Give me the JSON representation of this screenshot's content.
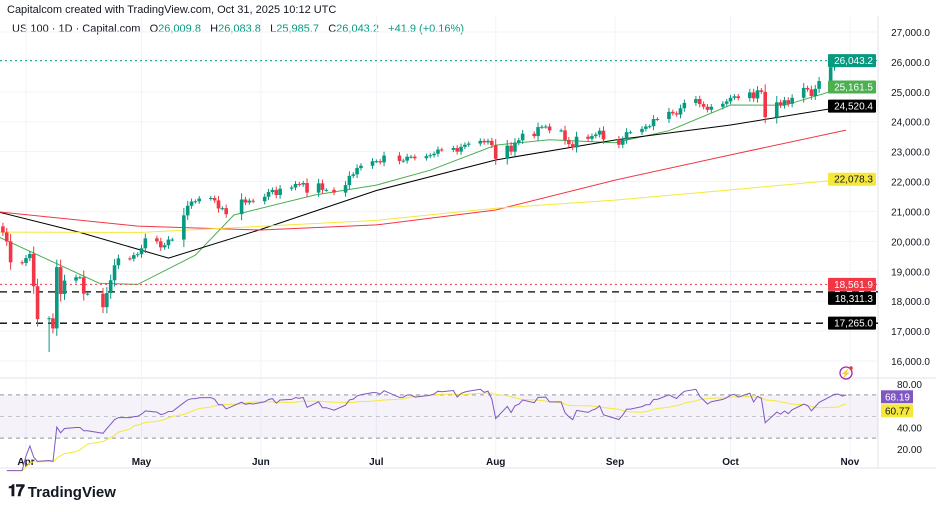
{
  "header": "Capitalcom created with TradingView.com, Oct 31, 2025 10:12 UTC",
  "legend": {
    "symbol": "US 100 · 1D · Capital.com",
    "o_label": "O",
    "o": "26,009.8",
    "h_label": "H",
    "h": "26,083.8",
    "l_label": "L",
    "l": "25,985.7",
    "c_label": "C",
    "c": "26,043.2",
    "change": "+41.9 (+0.16%)"
  },
  "brand": "TradingView",
  "colors": {
    "up": "#089981",
    "down": "#f23645",
    "ma20": "#4caf50",
    "ma50": "#000000",
    "ma100": "#f23645",
    "ma200": "#f5e83b",
    "rsi": "#7e57c2",
    "rsima": "#f5e83b"
  },
  "chart_data": {
    "type": "candlestick",
    "y_ticks": [
      27000,
      26000,
      25000,
      24000,
      23000,
      22000,
      21000,
      20000,
      19000,
      18000,
      17000,
      16000
    ],
    "y_tick_labels": [
      "27,000.0",
      "26,000.0",
      "25,000.0",
      "24,000.0",
      "23,000.0",
      "22,000.0",
      "21,000.0",
      "20,000.0",
      "19,000.0",
      "18,000.0",
      "17,000.0",
      "16,000.0"
    ],
    "x_labels": [
      {
        "date": "2025-04-01",
        "label": "Apr"
      },
      {
        "date": "2025-05-01",
        "label": "May"
      },
      {
        "date": "2025-06-01",
        "label": "Jun"
      },
      {
        "date": "2025-07-01",
        "label": "Jul"
      },
      {
        "date": "2025-08-01",
        "label": "Aug"
      },
      {
        "date": "2025-09-01",
        "label": "Sep"
      },
      {
        "date": "2025-10-01",
        "label": "Oct"
      },
      {
        "date": "2025-11-01",
        "label": "Nov"
      }
    ],
    "closes": [
      [
        "03-26",
        20300
      ],
      [
        "03-27",
        20000
      ],
      [
        "03-28",
        19300
      ],
      [
        "03-31",
        19280
      ],
      [
        "04-01",
        19440
      ],
      [
        "04-02",
        19580
      ],
      [
        "04-03",
        18500
      ],
      [
        "04-04",
        17400
      ],
      [
        "04-07",
        17430
      ],
      [
        "04-08",
        17090
      ],
      [
        "04-09",
        19140
      ],
      [
        "04-10",
        18240
      ],
      [
        "04-11",
        18690
      ],
      [
        "04-14",
        18800
      ],
      [
        "04-15",
        18800
      ],
      [
        "04-16",
        18250
      ],
      [
        "04-17",
        18250
      ],
      [
        "04-21",
        17800
      ],
      [
        "04-22",
        18270
      ],
      [
        "04-23",
        18700
      ],
      [
        "04-24",
        19200
      ],
      [
        "04-25",
        19430
      ],
      [
        "04-28",
        19420
      ],
      [
        "04-29",
        19540
      ],
      [
        "04-30",
        19570
      ],
      [
        "05-01",
        19770
      ],
      [
        "05-02",
        20100
      ],
      [
        "05-05",
        20000
      ],
      [
        "05-06",
        19800
      ],
      [
        "05-07",
        19870
      ],
      [
        "05-08",
        20060
      ],
      [
        "05-09",
        20060
      ],
      [
        "05-12",
        20870
      ],
      [
        "05-13",
        21190
      ],
      [
        "05-14",
        21330
      ],
      [
        "05-15",
        21340
      ],
      [
        "05-16",
        21430
      ],
      [
        "05-19",
        21450
      ],
      [
        "05-20",
        21370
      ],
      [
        "05-21",
        21100
      ],
      [
        "05-22",
        21110
      ],
      [
        "05-23",
        20910
      ],
      [
        "05-27",
        21400
      ],
      [
        "05-28",
        21300
      ],
      [
        "05-29",
        21360
      ],
      [
        "05-30",
        21340
      ],
      [
        "06-02",
        21490
      ],
      [
        "06-03",
        21650
      ],
      [
        "06-04",
        21720
      ],
      [
        "06-05",
        21550
      ],
      [
        "06-06",
        21760
      ],
      [
        "06-09",
        21800
      ],
      [
        "06-10",
        21920
      ],
      [
        "06-11",
        21900
      ],
      [
        "06-12",
        21950
      ],
      [
        "06-13",
        21630
      ],
      [
        "06-16",
        21940
      ],
      [
        "06-17",
        21720
      ],
      [
        "06-18",
        21720
      ],
      [
        "06-20",
        21630
      ],
      [
        "06-23",
        21880
      ],
      [
        "06-24",
        22190
      ],
      [
        "06-25",
        22240
      ],
      [
        "06-26",
        22450
      ],
      [
        "06-27",
        22530
      ],
      [
        "06-30",
        22680
      ],
      [
        "07-01",
        22680
      ],
      [
        "07-02",
        22640
      ],
      [
        "07-03",
        22870
      ],
      [
        "07-07",
        22690
      ],
      [
        "07-08",
        22700
      ],
      [
        "07-09",
        22830
      ],
      [
        "07-10",
        22830
      ],
      [
        "07-11",
        22780
      ],
      [
        "07-14",
        22850
      ],
      [
        "07-15",
        22880
      ],
      [
        "07-16",
        22930
      ],
      [
        "07-17",
        23070
      ],
      [
        "07-18",
        23060
      ],
      [
        "07-21",
        23120
      ],
      [
        "07-22",
        23000
      ],
      [
        "07-23",
        23160
      ],
      [
        "07-24",
        23230
      ],
      [
        "07-25",
        23270
      ],
      [
        "07-28",
        23360
      ],
      [
        "07-29",
        23310
      ],
      [
        "07-30",
        23360
      ],
      [
        "07-31",
        23220
      ],
      [
        "08-01",
        22760
      ],
      [
        "08-04",
        23200
      ],
      [
        "08-05",
        23000
      ],
      [
        "08-06",
        23300
      ],
      [
        "08-07",
        23380
      ],
      [
        "08-08",
        23600
      ],
      [
        "08-11",
        23520
      ],
      [
        "08-12",
        23820
      ],
      [
        "08-13",
        23830
      ],
      [
        "08-14",
        23840
      ],
      [
        "08-15",
        23710
      ],
      [
        "08-18",
        23710
      ],
      [
        "08-19",
        23390
      ],
      [
        "08-20",
        23250
      ],
      [
        "08-21",
        23140
      ],
      [
        "08-22",
        23500
      ],
      [
        "08-25",
        23430
      ],
      [
        "08-26",
        23520
      ],
      [
        "08-27",
        23570
      ],
      [
        "08-28",
        23700
      ],
      [
        "08-29",
        23410
      ],
      [
        "09-02",
        23230
      ],
      [
        "09-03",
        23400
      ],
      [
        "09-04",
        23650
      ],
      [
        "09-05",
        23650
      ],
      [
        "09-08",
        23760
      ],
      [
        "09-09",
        23840
      ],
      [
        "09-10",
        23850
      ],
      [
        "09-11",
        24090
      ],
      [
        "09-12",
        24090
      ],
      [
        "09-15",
        24330
      ],
      [
        "09-16",
        24280
      ],
      [
        "09-17",
        24240
      ],
      [
        "09-18",
        24450
      ],
      [
        "09-19",
        24630
      ],
      [
        "09-22",
        24760
      ],
      [
        "09-23",
        24590
      ],
      [
        "09-24",
        24500
      ],
      [
        "09-25",
        24400
      ],
      [
        "09-26",
        24500
      ],
      [
        "09-29",
        24600
      ],
      [
        "09-30",
        24680
      ],
      [
        "10-01",
        24800
      ],
      [
        "10-02",
        24850
      ],
      [
        "10-03",
        24790
      ],
      [
        "10-06",
        24980
      ],
      [
        "10-07",
        24780
      ],
      [
        "10-08",
        25050
      ],
      [
        "10-09",
        25000
      ],
      [
        "10-10",
        24150
      ],
      [
        "10-13",
        24650
      ],
      [
        "10-14",
        24550
      ],
      [
        "10-15",
        24720
      ],
      [
        "10-16",
        24600
      ],
      [
        "10-17",
        24800
      ],
      [
        "10-20",
        25130
      ],
      [
        "10-21",
        25080
      ],
      [
        "10-22",
        24860
      ],
      [
        "10-23",
        25100
      ],
      [
        "10-24",
        25360
      ],
      [
        "10-27",
        25820
      ],
      [
        "10-28",
        26010
      ],
      [
        "10-29",
        26020
      ],
      [
        "10-30",
        25950
      ],
      [
        "10-31",
        26043.2
      ]
    ],
    "special_lows": {
      "04-07": 16300,
      "04-21": 17600,
      "10-10": 23950
    },
    "moving_averages": [
      {
        "name": "MA20",
        "color": "#4caf50",
        "label": "25,161.5",
        "points": [
          [
            "03-24",
            20200
          ],
          [
            "04-20",
            18600
          ],
          [
            "04-30",
            18560
          ],
          [
            "05-15",
            19540
          ],
          [
            "05-25",
            20880
          ],
          [
            "06-15",
            21550
          ],
          [
            "07-01",
            21880
          ],
          [
            "07-15",
            22380
          ],
          [
            "08-01",
            23220
          ],
          [
            "08-15",
            23400
          ],
          [
            "09-01",
            23300
          ],
          [
            "09-15",
            23700
          ],
          [
            "10-01",
            24560
          ],
          [
            "10-15",
            24550
          ],
          [
            "10-31",
            25161.5
          ]
        ]
      },
      {
        "name": "MA50",
        "color": "#000000",
        "label": "24,520.4",
        "points": [
          [
            "03-24",
            21010
          ],
          [
            "04-15",
            20300
          ],
          [
            "05-08",
            19440
          ],
          [
            "06-01",
            20400
          ],
          [
            "07-01",
            21700
          ],
          [
            "08-01",
            22720
          ],
          [
            "09-01",
            23390
          ],
          [
            "10-01",
            23890
          ],
          [
            "10-31",
            24520.4
          ]
        ]
      },
      {
        "name": "MA100",
        "color": "#f23645",
        "label": "",
        "points": [
          [
            "03-24",
            21000
          ],
          [
            "04-30",
            20510
          ],
          [
            "06-01",
            20380
          ],
          [
            "07-01",
            20550
          ],
          [
            "08-01",
            21050
          ],
          [
            "09-01",
            22050
          ],
          [
            "10-01",
            22890
          ],
          [
            "10-31",
            23720
          ]
        ]
      },
      {
        "name": "MA200",
        "color": "#f5e83b",
        "label": "22,078.3",
        "points": [
          [
            "03-24",
            20310
          ],
          [
            "05-01",
            20300
          ],
          [
            "07-01",
            20700
          ],
          [
            "08-01",
            21110
          ],
          [
            "09-01",
            21380
          ],
          [
            "10-01",
            21720
          ],
          [
            "10-31",
            22078.3
          ]
        ]
      }
    ],
    "price_lines": [
      {
        "value": 26043.2,
        "label": "26,043.2",
        "color": "#089981",
        "style": "dotted"
      },
      {
        "value": 18561.9,
        "label": "18,561.9",
        "color": "#f23645",
        "style": "dotted"
      },
      {
        "value": 18311.3,
        "label": "18,311.3",
        "color": "#000000",
        "style": "dashed"
      },
      {
        "value": 17265.0,
        "label": "17,265.0",
        "color": "#000000",
        "style": "dashed"
      }
    ],
    "rsi": {
      "ticks": [
        "80.00",
        "40.00",
        "20.00"
      ],
      "tick_values": [
        80,
        40,
        20
      ],
      "upper": 70,
      "lower": 30,
      "last_rsi": "68.19",
      "last_ma": "60.77"
    }
  }
}
